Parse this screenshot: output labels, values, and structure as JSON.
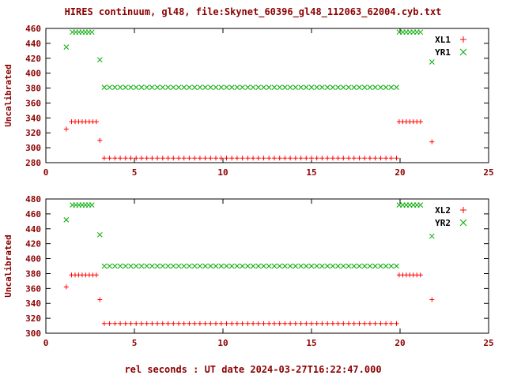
{
  "title": "HIRES continuum, gl48, file:Skynet_60396_gl48_112063_62004.cyb.txt",
  "xlabel": "rel seconds : UT date 2024-03-27T16:22:47.000",
  "colors": {
    "text": "#8b0000",
    "axis": "#000000",
    "legend_text": "#000000",
    "red": "#ff0000",
    "green": "#00aa00"
  },
  "chart_data": [
    {
      "type": "scatter",
      "ylabel": "Uncalibrated",
      "xlim": [
        0,
        25
      ],
      "ylim": [
        280,
        460
      ],
      "xticks": [
        0,
        5,
        10,
        15,
        20,
        25
      ],
      "yticks": [
        280,
        300,
        320,
        340,
        360,
        380,
        400,
        420,
        440,
        460
      ],
      "grid": false,
      "legend_position": "top-right",
      "series": [
        {
          "name": "XL1",
          "marker": "plus",
          "color": "#ff0000",
          "points": [
            [
              1.15,
              325
            ],
            [
              3.05,
              310
            ],
            [
              21.8,
              308
            ]
          ],
          "segments": [
            {
              "x0": 1.45,
              "x1": 2.85,
              "n": 8,
              "y": 335
            },
            {
              "x0": 3.3,
              "x1": 19.8,
              "n": 56,
              "y": 286
            },
            {
              "x0": 19.95,
              "x1": 21.15,
              "n": 7,
              "y": 335
            }
          ]
        },
        {
          "name": "YR1",
          "marker": "cross",
          "color": "#00aa00",
          "points": [
            [
              1.15,
              435
            ],
            [
              3.05,
              418
            ],
            [
              21.8,
              415
            ]
          ],
          "segments": [
            {
              "x0": 1.5,
              "x1": 2.6,
              "n": 7,
              "y": 455
            },
            {
              "x0": 3.3,
              "x1": 19.8,
              "n": 56,
              "y": 381
            },
            {
              "x0": 19.95,
              "x1": 21.15,
              "n": 7,
              "y": 455
            }
          ]
        }
      ]
    },
    {
      "type": "scatter",
      "ylabel": "Uncalibrated",
      "xlim": [
        0,
        25
      ],
      "ylim": [
        300,
        480
      ],
      "xticks": [
        0,
        5,
        10,
        15,
        20,
        25
      ],
      "yticks": [
        300,
        320,
        340,
        360,
        380,
        400,
        420,
        440,
        460,
        480
      ],
      "grid": false,
      "legend_position": "top-right",
      "series": [
        {
          "name": "XL2",
          "marker": "plus",
          "color": "#ff0000",
          "points": [
            [
              1.15,
              362
            ],
            [
              3.05,
              345
            ],
            [
              21.8,
              345
            ]
          ],
          "segments": [
            {
              "x0": 1.45,
              "x1": 2.85,
              "n": 8,
              "y": 378
            },
            {
              "x0": 3.3,
              "x1": 19.8,
              "n": 56,
              "y": 313
            },
            {
              "x0": 19.95,
              "x1": 21.15,
              "n": 7,
              "y": 378
            }
          ]
        },
        {
          "name": "YR2",
          "marker": "cross",
          "color": "#00aa00",
          "points": [
            [
              1.15,
              452
            ],
            [
              3.05,
              432
            ],
            [
              21.8,
              430
            ]
          ],
          "segments": [
            {
              "x0": 1.5,
              "x1": 2.6,
              "n": 7,
              "y": 472
            },
            {
              "x0": 3.3,
              "x1": 19.8,
              "n": 56,
              "y": 390
            },
            {
              "x0": 19.95,
              "x1": 21.15,
              "n": 7,
              "y": 472
            }
          ]
        }
      ]
    }
  ]
}
